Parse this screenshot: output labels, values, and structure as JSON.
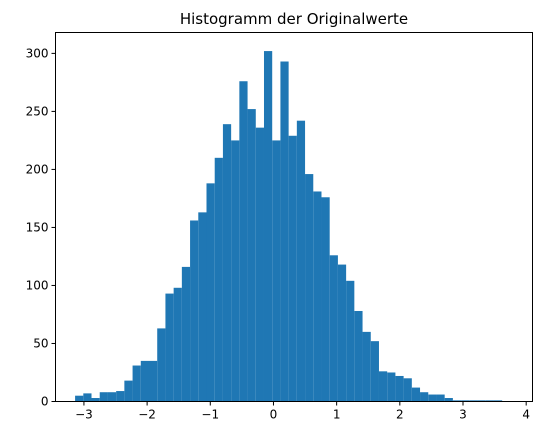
{
  "chart_data": {
    "type": "bar",
    "title": "Histogramm der Originalwerte",
    "xlabel": "",
    "ylabel": "",
    "xlim": [
      -3.45,
      4.1
    ],
    "ylim": [
      0,
      318
    ],
    "grid": false,
    "bar_color": "#1f77b4",
    "x_ticks": [
      -3,
      -2,
      -1,
      0,
      1,
      2,
      3,
      4
    ],
    "y_ticks": [
      0,
      50,
      100,
      150,
      200,
      250,
      300
    ],
    "bins": [
      {
        "x0": -3.14,
        "x1": -3.01,
        "count": 5
      },
      {
        "x0": -3.01,
        "x1": -2.88,
        "count": 7
      },
      {
        "x0": -2.88,
        "x1": -2.75,
        "count": 3
      },
      {
        "x0": -2.75,
        "x1": -2.62,
        "count": 8
      },
      {
        "x0": -2.62,
        "x1": -2.49,
        "count": 8
      },
      {
        "x0": -2.49,
        "x1": -2.36,
        "count": 9
      },
      {
        "x0": -2.36,
        "x1": -2.23,
        "count": 18
      },
      {
        "x0": -2.23,
        "x1": -2.1,
        "count": 31
      },
      {
        "x0": -2.1,
        "x1": -1.97,
        "count": 35
      },
      {
        "x0": -1.97,
        "x1": -1.84,
        "count": 35
      },
      {
        "x0": -1.84,
        "x1": -1.71,
        "count": 63
      },
      {
        "x0": -1.71,
        "x1": -1.58,
        "count": 93
      },
      {
        "x0": -1.58,
        "x1": -1.45,
        "count": 98
      },
      {
        "x0": -1.45,
        "x1": -1.32,
        "count": 116
      },
      {
        "x0": -1.32,
        "x1": -1.19,
        "count": 156
      },
      {
        "x0": -1.19,
        "x1": -1.06,
        "count": 163
      },
      {
        "x0": -1.06,
        "x1": -0.93,
        "count": 188
      },
      {
        "x0": -0.93,
        "x1": -0.8,
        "count": 210
      },
      {
        "x0": -0.8,
        "x1": -0.67,
        "count": 239
      },
      {
        "x0": -0.67,
        "x1": -0.54,
        "count": 225
      },
      {
        "x0": -0.54,
        "x1": -0.41,
        "count": 276
      },
      {
        "x0": -0.41,
        "x1": -0.28,
        "count": 252
      },
      {
        "x0": -0.28,
        "x1": -0.15,
        "count": 236
      },
      {
        "x0": -0.15,
        "x1": -0.02,
        "count": 302
      },
      {
        "x0": -0.02,
        "x1": 0.11,
        "count": 225
      },
      {
        "x0": 0.11,
        "x1": 0.24,
        "count": 293
      },
      {
        "x0": 0.24,
        "x1": 0.37,
        "count": 229
      },
      {
        "x0": 0.37,
        "x1": 0.5,
        "count": 242
      },
      {
        "x0": 0.5,
        "x1": 0.63,
        "count": 196
      },
      {
        "x0": 0.63,
        "x1": 0.76,
        "count": 181
      },
      {
        "x0": 0.76,
        "x1": 0.89,
        "count": 176
      },
      {
        "x0": 0.89,
        "x1": 1.02,
        "count": 126
      },
      {
        "x0": 1.02,
        "x1": 1.15,
        "count": 118
      },
      {
        "x0": 1.15,
        "x1": 1.28,
        "count": 104
      },
      {
        "x0": 1.28,
        "x1": 1.41,
        "count": 78
      },
      {
        "x0": 1.41,
        "x1": 1.54,
        "count": 60
      },
      {
        "x0": 1.54,
        "x1": 1.67,
        "count": 52
      },
      {
        "x0": 1.67,
        "x1": 1.8,
        "count": 26
      },
      {
        "x0": 1.8,
        "x1": 1.93,
        "count": 25
      },
      {
        "x0": 1.93,
        "x1": 2.06,
        "count": 22
      },
      {
        "x0": 2.06,
        "x1": 2.19,
        "count": 20
      },
      {
        "x0": 2.19,
        "x1": 2.32,
        "count": 12
      },
      {
        "x0": 2.32,
        "x1": 2.45,
        "count": 8
      },
      {
        "x0": 2.45,
        "x1": 2.58,
        "count": 6
      },
      {
        "x0": 2.58,
        "x1": 2.71,
        "count": 6
      },
      {
        "x0": 2.71,
        "x1": 2.84,
        "count": 3
      },
      {
        "x0": 2.84,
        "x1": 2.97,
        "count": 1
      },
      {
        "x0": 2.97,
        "x1": 3.1,
        "count": 1
      },
      {
        "x0": 3.1,
        "x1": 3.23,
        "count": 1
      },
      {
        "x0": 3.23,
        "x1": 3.36,
        "count": 1
      },
      {
        "x0": 3.36,
        "x1": 3.49,
        "count": 1
      },
      {
        "x0": 3.49,
        "x1": 3.62,
        "count": 1
      }
    ]
  }
}
